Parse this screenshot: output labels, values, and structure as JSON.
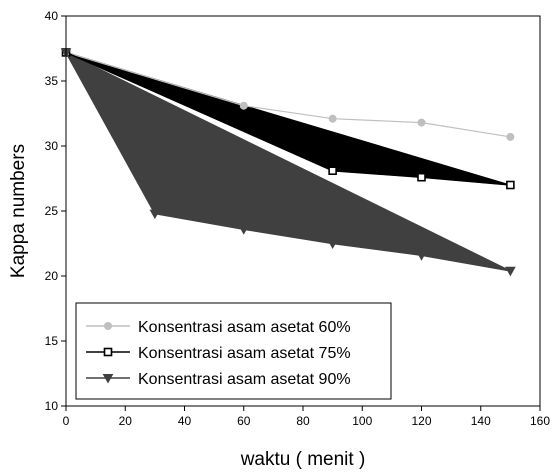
{
  "chart_data": {
    "type": "line",
    "title": "",
    "xlabel": "waktu ( menit )",
    "ylabel": "Kappa numbers",
    "xlim": [
      0,
      160
    ],
    "ylim": [
      10,
      40
    ],
    "xticks": [
      0,
      20,
      40,
      60,
      80,
      100,
      120,
      140,
      160
    ],
    "yticks": [
      10,
      15,
      20,
      25,
      30,
      35,
      40
    ],
    "grid": false,
    "legend_position": "bottom-left",
    "series": [
      {
        "name": "Konsentrasi asam asetat 60%",
        "marker": "circle",
        "color": "#bfbfbf",
        "x": [
          0,
          60,
          90,
          120,
          150
        ],
        "y": [
          37.2,
          33.1,
          32.1,
          31.8,
          30.7
        ]
      },
      {
        "name": "Konsentrasi asam asetat 75%",
        "marker": "square-open",
        "color": "#000000",
        "x": [
          0,
          90,
          120,
          150
        ],
        "y": [
          37.2,
          28.1,
          27.6,
          27.0
        ]
      },
      {
        "name": "Konsentrasi asam asetat 90%",
        "marker": "triangle-down",
        "color": "#404040",
        "x": [
          0,
          30,
          60,
          90,
          120,
          150
        ],
        "y": [
          37.2,
          24.8,
          23.6,
          22.5,
          21.6,
          20.4
        ]
      }
    ]
  }
}
